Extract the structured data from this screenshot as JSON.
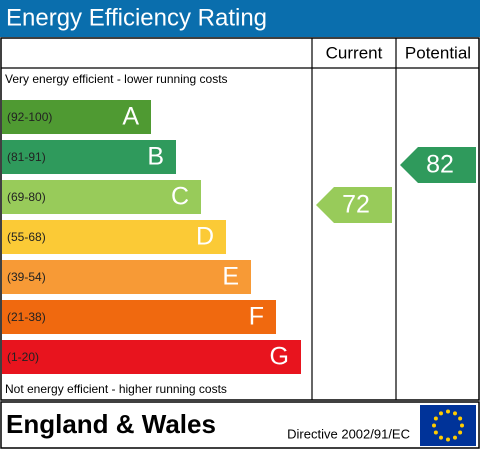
{
  "header": {
    "title": "Energy Efficiency Rating"
  },
  "columns": {
    "current": "Current",
    "potential": "Potential"
  },
  "top_note": "Very energy efficient - lower running costs",
  "bands": [
    {
      "range": "(92-100)",
      "letter": "A",
      "color": "#4f9a32"
    },
    {
      "range": "(81-91)",
      "letter": "B",
      "color": "#2f9a5c"
    },
    {
      "range": "(69-80)",
      "letter": "C",
      "color": "#98cb5a"
    },
    {
      "range": "(55-68)",
      "letter": "D",
      "color": "#fbca36"
    },
    {
      "range": "(39-54)",
      "letter": "E",
      "color": "#f79a36"
    },
    {
      "range": "(21-38)",
      "letter": "F",
      "color": "#f0690f"
    },
    {
      "range": "(1-20)",
      "letter": "G",
      "color": "#e8141e"
    }
  ],
  "bottom_note": "Not energy efficient - higher running costs",
  "ratings": {
    "current": 72,
    "potential": 82
  },
  "footer": {
    "region": "England & Wales",
    "directive": "Directive 2002/91/EC"
  }
}
